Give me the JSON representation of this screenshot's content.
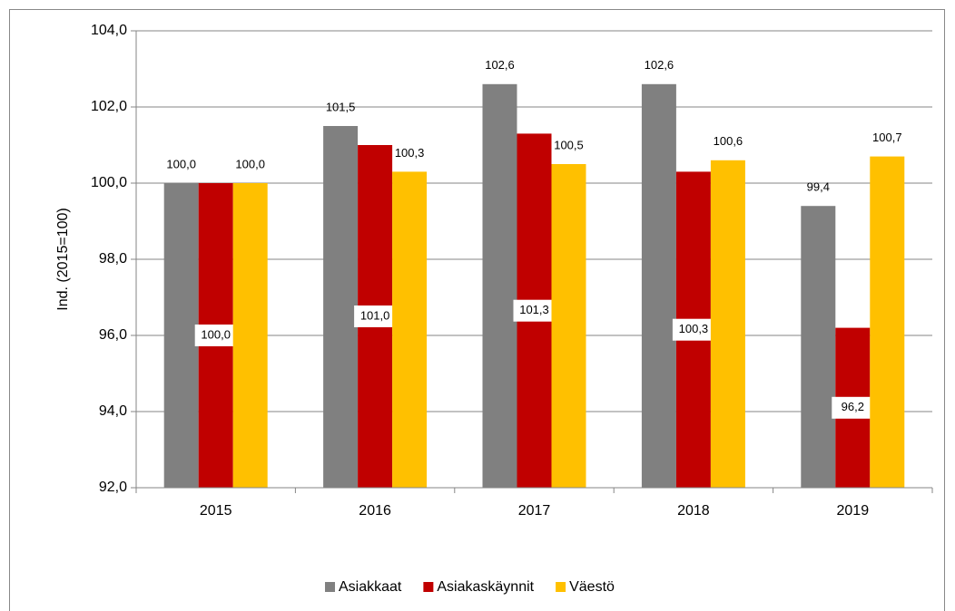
{
  "chart_data": {
    "type": "bar",
    "y_label": "Ind. (2015=100)",
    "categories": [
      "2015",
      "2016",
      "2017",
      "2018",
      "2019"
    ],
    "series": [
      {
        "name": "Asiakkaat",
        "color": "#808080",
        "values": [
          100.0,
          101.5,
          102.6,
          102.6,
          99.4
        ],
        "value_labels": [
          "100,0",
          "101,5",
          "102,6",
          "102,6",
          "99,4"
        ]
      },
      {
        "name": "Asiakaskäynnit",
        "color": "#c00000",
        "values": [
          100.0,
          101.0,
          101.3,
          100.3,
          96.2
        ],
        "value_labels": [
          "100,0",
          "101,0",
          "101,3",
          "100,3",
          "96,2"
        ]
      },
      {
        "name": "Väestö",
        "color": "#ffc000",
        "values": [
          100.0,
          100.3,
          100.5,
          100.6,
          100.7
        ],
        "value_labels": [
          "100,0",
          "100,3",
          "100,5",
          "100,6",
          "100,7"
        ]
      }
    ],
    "ylim": [
      92,
      104
    ],
    "yticks": [
      {
        "value": 92,
        "label": "92,0"
      },
      {
        "value": 94,
        "label": "94,0"
      },
      {
        "value": 96,
        "label": "96,0"
      },
      {
        "value": 98,
        "label": "98,0"
      },
      {
        "value": 100,
        "label": "100,0"
      },
      {
        "value": 102,
        "label": "102,0"
      },
      {
        "value": 104,
        "label": "104,0"
      }
    ],
    "grid": true,
    "legend": "bottom"
  }
}
